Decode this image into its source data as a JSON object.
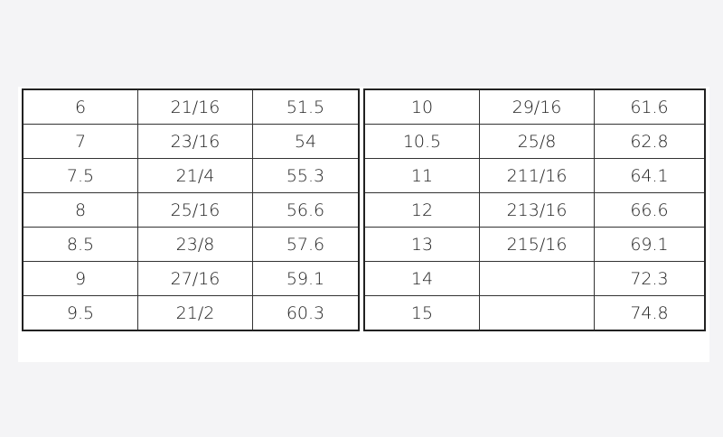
{
  "tables": [
    {
      "rows": [
        [
          "6",
          "21/16",
          "51.5"
        ],
        [
          "7",
          "23/16",
          "54"
        ],
        [
          "7.5",
          "21/4",
          "55.3"
        ],
        [
          "8",
          "25/16",
          "56.6"
        ],
        [
          "8.5",
          "23/8",
          "57.6"
        ],
        [
          "9",
          "27/16",
          "59.1"
        ],
        [
          "9.5",
          "21/2",
          "60.3"
        ]
      ]
    },
    {
      "rows": [
        [
          "10",
          "29/16",
          "61.6"
        ],
        [
          "10.5",
          "25/8",
          "62.8"
        ],
        [
          "11",
          "211/16",
          "64.1"
        ],
        [
          "12",
          "213/16",
          "66.6"
        ],
        [
          "13",
          "215/16",
          "69.1"
        ],
        [
          "14",
          "",
          "72.3"
        ],
        [
          "15",
          "",
          "74.8"
        ]
      ]
    }
  ]
}
